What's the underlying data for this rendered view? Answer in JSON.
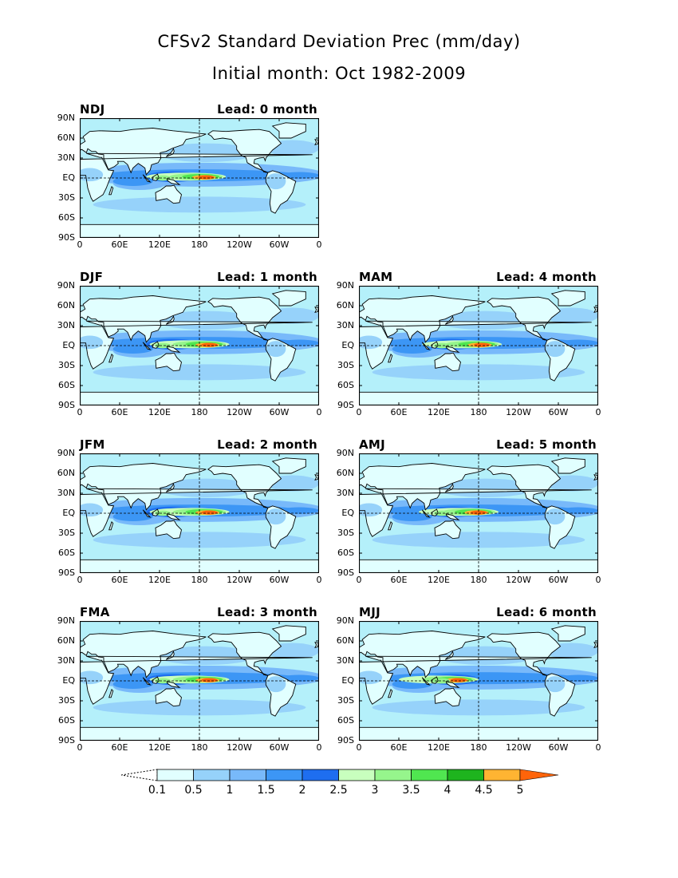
{
  "title": "CFSv2 Standard Deviation Prec (mm/day)",
  "subtitle": "Initial month: Oct 1982-2009",
  "lead_prefix": "Lead:",
  "lat_labels": [
    "90N",
    "60N",
    "30N",
    "EQ",
    "30S",
    "60S",
    "90S"
  ],
  "lon_labels": [
    "0",
    "60E",
    "120E",
    "180",
    "120W",
    "60W",
    "0"
  ],
  "panels": [
    {
      "season": "NDJ",
      "lead": "Lead: 0 month",
      "peak": 5.0,
      "max_lon_deg": 190
    },
    {
      "season": "DJF",
      "lead": "Lead: 1 month",
      "peak": 5.0,
      "max_lon_deg": 195
    },
    {
      "season": "JFM",
      "lead": "Lead: 2 month",
      "peak": 5.0,
      "max_lon_deg": 195
    },
    {
      "season": "FMA",
      "lead": "Lead: 3 month",
      "peak": 5.0,
      "max_lon_deg": 195
    },
    {
      "season": "MAM",
      "lead": "Lead: 4 month",
      "peak": 5.0,
      "max_lon_deg": 185
    },
    {
      "season": "AMJ",
      "lead": "Lead: 5 month",
      "peak": 4.5,
      "max_lon_deg": 180
    },
    {
      "season": "MJJ",
      "lead": "Lead: 6 month",
      "peak": 5.0,
      "max_lon_deg": 150
    }
  ],
  "colorbar": {
    "labels": [
      "0.1",
      "0.5",
      "1",
      "1.5",
      "2",
      "2.5",
      "3",
      "3.5",
      "4",
      "4.5",
      "5"
    ],
    "colors": [
      "#e1ffff",
      "#b4f0fa",
      "#96d2fa",
      "#78b9fa",
      "#3c96f5",
      "#1e6ef0",
      "#c8ffbe",
      "#96f58c",
      "#50e650",
      "#1eb41e",
      "#ffb432",
      "#ff640a"
    ]
  },
  "colors": {
    "ocean_base": "#e1ffff",
    "coast": "#000000"
  }
}
